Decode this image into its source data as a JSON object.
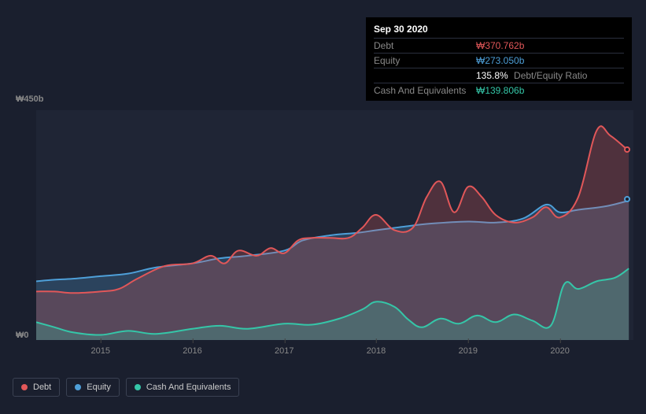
{
  "tooltip": {
    "date": "Sep 30 2020",
    "rows": [
      {
        "label": "Debt",
        "value": "₩370.762b",
        "color": "#e15759"
      },
      {
        "label": "Equity",
        "value": "₩273.050b",
        "color": "#4e9fd8"
      },
      {
        "label": "",
        "ratio": "135.8%",
        "ratio_label": "Debt/Equity Ratio"
      },
      {
        "label": "Cash And Equivalents",
        "value": "₩139.806b",
        "color": "#35c6a8"
      }
    ]
  },
  "chart": {
    "type": "area",
    "background": "#1a1f2e",
    "plot_background": "#1f2535",
    "ylabel_top": "₩450b",
    "ylabel_bottom": "₩0",
    "ylim": [
      0,
      450
    ],
    "x_categories": [
      "2015",
      "2016",
      "2017",
      "2018",
      "2019",
      "2020"
    ],
    "x_range": [
      2014.3,
      2020.8
    ],
    "series": {
      "debt": {
        "color": "#e15759",
        "fill": "rgba(225,87,89,0.25)",
        "line_width": 2,
        "data": [
          [
            2014.3,
            95
          ],
          [
            2014.5,
            95
          ],
          [
            2014.7,
            92
          ],
          [
            2015.0,
            95
          ],
          [
            2015.2,
            100
          ],
          [
            2015.4,
            120
          ],
          [
            2015.7,
            145
          ],
          [
            2016.0,
            150
          ],
          [
            2016.2,
            165
          ],
          [
            2016.35,
            150
          ],
          [
            2016.5,
            175
          ],
          [
            2016.7,
            165
          ],
          [
            2016.85,
            180
          ],
          [
            2017.0,
            170
          ],
          [
            2017.15,
            195
          ],
          [
            2017.3,
            200
          ],
          [
            2017.5,
            200
          ],
          [
            2017.7,
            200
          ],
          [
            2017.85,
            220
          ],
          [
            2018.0,
            245
          ],
          [
            2018.2,
            215
          ],
          [
            2018.4,
            220
          ],
          [
            2018.55,
            280
          ],
          [
            2018.7,
            310
          ],
          [
            2018.85,
            250
          ],
          [
            2019.0,
            300
          ],
          [
            2019.15,
            280
          ],
          [
            2019.3,
            245
          ],
          [
            2019.5,
            230
          ],
          [
            2019.7,
            240
          ],
          [
            2019.85,
            260
          ],
          [
            2020.0,
            240
          ],
          [
            2020.2,
            280
          ],
          [
            2020.4,
            410
          ],
          [
            2020.55,
            400
          ],
          [
            2020.75,
            370
          ]
        ]
      },
      "equity": {
        "color": "#4e9fd8",
        "fill": "rgba(78,159,216,0.25)",
        "line_width": 2,
        "data": [
          [
            2014.3,
            115
          ],
          [
            2014.5,
            118
          ],
          [
            2014.7,
            120
          ],
          [
            2015.0,
            125
          ],
          [
            2015.3,
            130
          ],
          [
            2015.6,
            142
          ],
          [
            2016.0,
            150
          ],
          [
            2016.3,
            160
          ],
          [
            2016.6,
            165
          ],
          [
            2017.0,
            175
          ],
          [
            2017.2,
            195
          ],
          [
            2017.5,
            205
          ],
          [
            2017.8,
            210
          ],
          [
            2018.0,
            215
          ],
          [
            2018.3,
            222
          ],
          [
            2018.6,
            228
          ],
          [
            2019.0,
            232
          ],
          [
            2019.3,
            230
          ],
          [
            2019.6,
            238
          ],
          [
            2019.85,
            265
          ],
          [
            2020.0,
            250
          ],
          [
            2020.2,
            255
          ],
          [
            2020.5,
            262
          ],
          [
            2020.75,
            273
          ]
        ]
      },
      "cash": {
        "color": "#35c6a8",
        "fill": "rgba(53,198,168,0.25)",
        "line_width": 2,
        "data": [
          [
            2014.3,
            35
          ],
          [
            2014.5,
            25
          ],
          [
            2014.7,
            15
          ],
          [
            2015.0,
            10
          ],
          [
            2015.3,
            18
          ],
          [
            2015.6,
            12
          ],
          [
            2016.0,
            22
          ],
          [
            2016.3,
            28
          ],
          [
            2016.6,
            22
          ],
          [
            2017.0,
            32
          ],
          [
            2017.3,
            30
          ],
          [
            2017.6,
            42
          ],
          [
            2017.85,
            60
          ],
          [
            2018.0,
            75
          ],
          [
            2018.2,
            65
          ],
          [
            2018.35,
            40
          ],
          [
            2018.5,
            25
          ],
          [
            2018.7,
            42
          ],
          [
            2018.9,
            32
          ],
          [
            2019.1,
            48
          ],
          [
            2019.3,
            35
          ],
          [
            2019.5,
            50
          ],
          [
            2019.7,
            38
          ],
          [
            2019.9,
            28
          ],
          [
            2020.05,
            110
          ],
          [
            2020.2,
            100
          ],
          [
            2020.4,
            115
          ],
          [
            2020.6,
            122
          ],
          [
            2020.75,
            140
          ]
        ]
      }
    }
  },
  "legend": [
    {
      "label": "Debt",
      "color": "#e15759"
    },
    {
      "label": "Equity",
      "color": "#4e9fd8"
    },
    {
      "label": "Cash And Equivalents",
      "color": "#35c6a8"
    }
  ]
}
